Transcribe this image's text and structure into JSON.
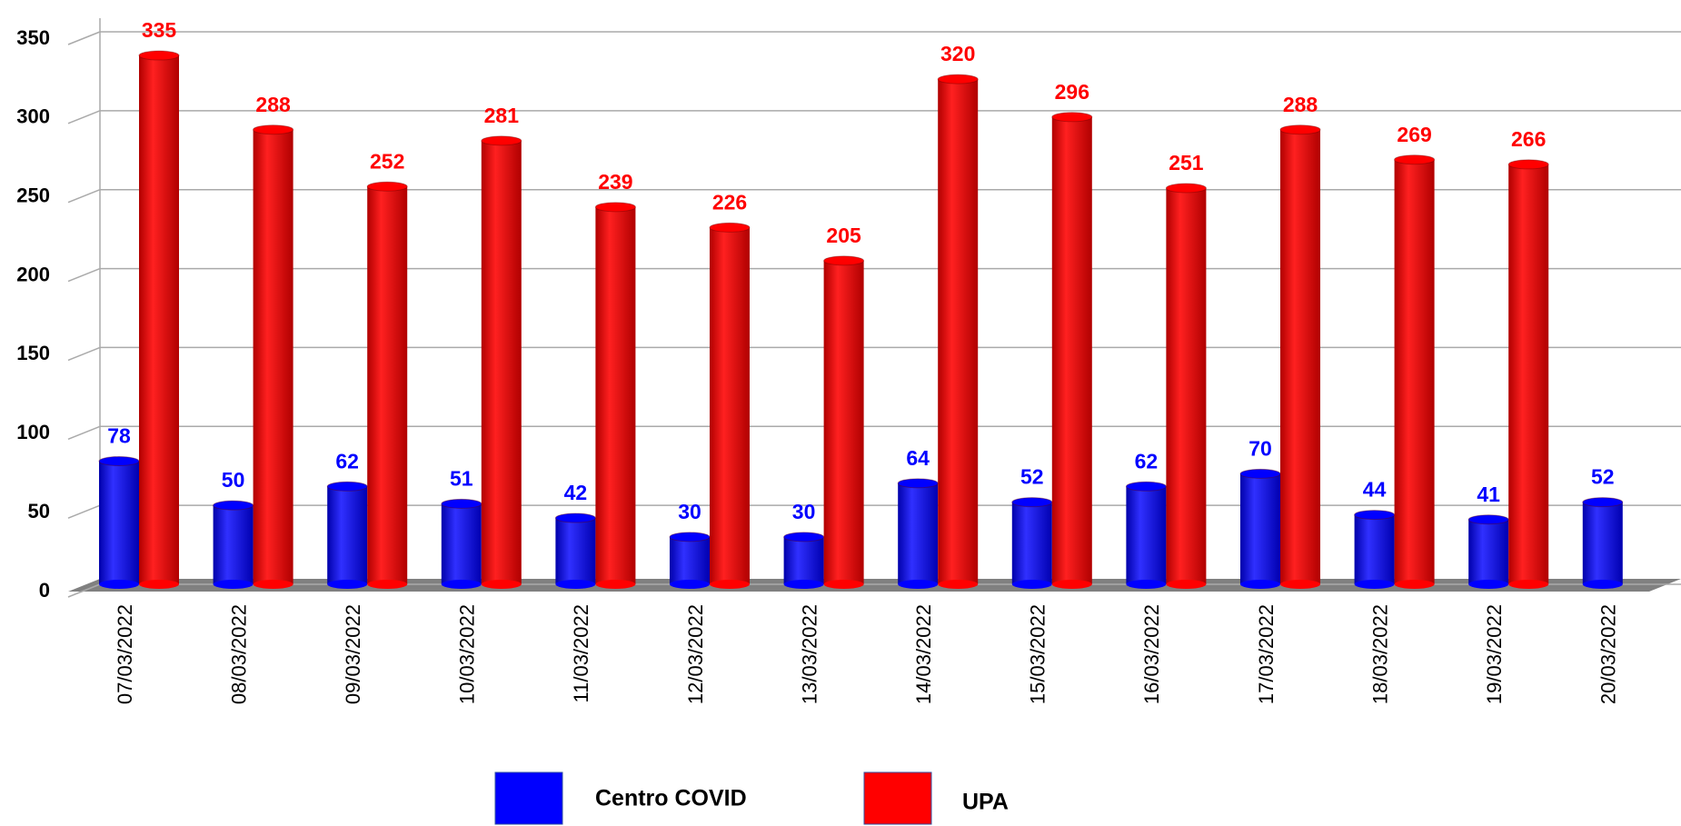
{
  "chart_data": {
    "type": "bar3d",
    "categories": [
      "07/03/2022",
      "08/03/2022",
      "09/03/2022",
      "10/03/2022",
      "11/03/2022",
      "12/03/2022",
      "13/03/2022",
      "14/03/2022",
      "15/03/2022",
      "16/03/2022",
      "17/03/2022",
      "18/03/2022",
      "19/03/2022",
      "20/03/2022"
    ],
    "series": [
      {
        "name": "Centro COVID",
        "color": "#0000ff",
        "values": [
          78,
          50,
          62,
          51,
          42,
          30,
          30,
          64,
          52,
          62,
          70,
          44,
          41,
          52
        ]
      },
      {
        "name": "UPA",
        "color": "#ff0000",
        "values": [
          335,
          288,
          252,
          281,
          239,
          226,
          205,
          320,
          296,
          251,
          288,
          269,
          266,
          null
        ]
      }
    ],
    "ylim": [
      0,
      350
    ],
    "yticks": [
      0,
      50,
      100,
      150,
      200,
      250,
      300,
      350
    ],
    "grid": true
  }
}
